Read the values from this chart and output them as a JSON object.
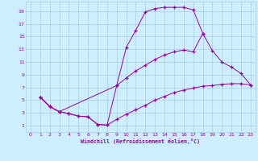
{
  "xlabel": "Windchill (Refroidissement éolien,°C)",
  "background_color": "#cceeff",
  "grid_color": "#aaccdd",
  "line_color": "#990099",
  "xlim": [
    -0.5,
    23.5
  ],
  "ylim": [
    0,
    20.5
  ],
  "xticks": [
    0,
    1,
    2,
    3,
    4,
    5,
    6,
    7,
    8,
    9,
    10,
    11,
    12,
    13,
    14,
    15,
    16,
    17,
    18,
    19,
    20,
    21,
    22,
    23
  ],
  "yticks": [
    1,
    3,
    5,
    7,
    9,
    11,
    13,
    15,
    17,
    19
  ],
  "curve1_x": [
    1,
    2,
    3,
    4,
    5,
    6,
    7,
    8,
    9,
    10,
    11,
    12,
    13,
    14,
    15,
    16,
    17,
    18
  ],
  "curve1_y": [
    5.5,
    4.0,
    3.2,
    2.9,
    2.5,
    2.4,
    1.2,
    1.1,
    7.3,
    13.3,
    16.0,
    18.9,
    19.4,
    19.6,
    19.6,
    19.6,
    19.2,
    15.5
  ],
  "curve2_x": [
    1,
    2,
    3,
    4,
    5,
    6,
    7,
    8,
    9,
    10,
    11,
    12,
    13,
    14,
    15,
    16,
    17,
    18,
    19,
    20,
    21,
    22,
    23
  ],
  "curve2_y": [
    5.5,
    4.0,
    3.2,
    2.9,
    2.5,
    2.4,
    1.2,
    1.1,
    2.0,
    2.8,
    3.5,
    4.2,
    5.0,
    5.6,
    6.2,
    6.6,
    6.9,
    7.2,
    7.3,
    7.5,
    7.6,
    7.6,
    7.4
  ],
  "curve3_x": [
    1,
    2,
    3,
    9,
    10,
    11,
    12,
    13,
    14,
    15,
    16,
    17,
    18,
    19,
    20,
    21,
    22,
    23
  ],
  "curve3_y": [
    5.5,
    4.0,
    3.2,
    7.3,
    8.5,
    9.6,
    10.5,
    11.4,
    12.1,
    12.6,
    12.9,
    12.6,
    15.5,
    12.8,
    11.0,
    10.2,
    9.2,
    7.4
  ]
}
